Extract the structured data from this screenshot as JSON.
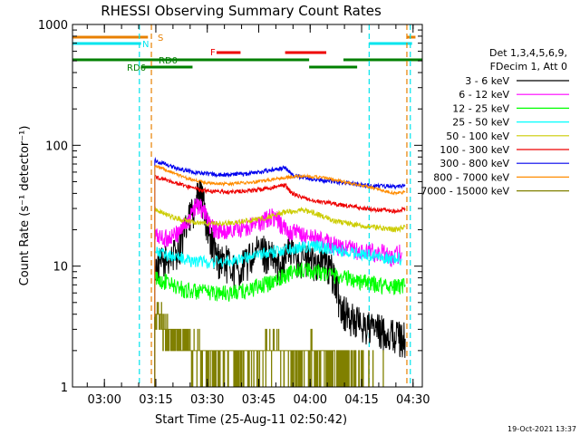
{
  "chart_data": {
    "type": "line",
    "title": "RHESSI Observing Summary Count Rates",
    "xlabel": "Start Time (25-Aug-11 02:50:42)",
    "ylabel": "Count Rate (s⁻¹ detector⁻¹)",
    "yscale": "log",
    "ylim": [
      1,
      1000
    ],
    "xlim_min": [
      0,
      102
    ],
    "x_ticks": [
      {
        "min": 9.3,
        "label": "03:00"
      },
      {
        "min": 24.3,
        "label": "03:15"
      },
      {
        "min": 39.3,
        "label": "03:30"
      },
      {
        "min": 54.3,
        "label": "03:45"
      },
      {
        "min": 69.3,
        "label": "04:00"
      },
      {
        "min": 84.3,
        "label": "04:15"
      },
      {
        "min": 99.3,
        "label": "04:30"
      }
    ],
    "y_ticks": [
      {
        "value": 1,
        "label": "1"
      },
      {
        "value": 10,
        "label": "10"
      },
      {
        "value": 100,
        "label": "100"
      },
      {
        "value": 1000,
        "label": "1000"
      }
    ],
    "legend_header": [
      "Det 1,3,4,5,6,9,",
      "FDecim 1, Att 0"
    ],
    "footer_date": "19-Oct-2021 13:37",
    "flag_labels": {
      "s": "S",
      "n": "N",
      "f": "F",
      "rd0": "RD0",
      "rd6": "RD6"
    },
    "flags": {
      "saa": [
        [
          0,
          22
        ],
        [
          97.5,
          100
        ]
      ],
      "night": [
        [
          0,
          20
        ],
        [
          86.5,
          99
        ]
      ],
      "flare": [
        [
          42,
          49
        ],
        [
          62,
          74
        ]
      ],
      "rd0": [
        [
          0,
          69
        ],
        [
          79,
          102
        ]
      ],
      "rd6": [
        [
          20,
          35
        ],
        [
          69,
          83
        ]
      ]
    },
    "vlines": [
      {
        "min": 19.5,
        "color": "#00e5ee"
      },
      {
        "min": 23.0,
        "color": "#e88000"
      },
      {
        "min": 86.5,
        "color": "#00e5ee"
      },
      {
        "min": 97.5,
        "color": "#e88000"
      },
      {
        "min": 98.5,
        "color": "#00e5ee"
      }
    ],
    "series": [
      {
        "name": "3 - 6 keV",
        "color": "#000000",
        "noise": 0.35,
        "points": [
          [
            24,
            10
          ],
          [
            27,
            11
          ],
          [
            30,
            13
          ],
          [
            33,
            20
          ],
          [
            35,
            30
          ],
          [
            37,
            40
          ],
          [
            38,
            35
          ],
          [
            40,
            18
          ],
          [
            42,
            12
          ],
          [
            45,
            11
          ],
          [
            48,
            9
          ],
          [
            52,
            12
          ],
          [
            55,
            14
          ],
          [
            58,
            12
          ],
          [
            60,
            10
          ],
          [
            63,
            14
          ],
          [
            66,
            12
          ],
          [
            70,
            11
          ],
          [
            73,
            11
          ],
          [
            76,
            9
          ],
          [
            78,
            5
          ],
          [
            80,
            4
          ],
          [
            83,
            3.5
          ],
          [
            86,
            3.2
          ],
          [
            89,
            3
          ],
          [
            92,
            2.8
          ],
          [
            95,
            2.7
          ],
          [
            97,
            2.5
          ]
        ]
      },
      {
        "name": "6 - 12 keV",
        "color": "#ff00ff",
        "noise": 0.18,
        "points": [
          [
            24,
            18
          ],
          [
            27,
            17
          ],
          [
            30,
            18
          ],
          [
            32,
            21
          ],
          [
            34,
            25
          ],
          [
            36,
            32
          ],
          [
            38,
            30
          ],
          [
            40,
            22
          ],
          [
            42,
            20
          ],
          [
            44,
            19
          ],
          [
            46,
            20
          ],
          [
            50,
            21
          ],
          [
            53,
            22
          ],
          [
            56,
            24
          ],
          [
            58,
            26
          ],
          [
            60,
            24
          ],
          [
            62,
            20
          ],
          [
            65,
            19
          ],
          [
            68,
            18
          ],
          [
            71,
            17
          ],
          [
            74,
            16
          ],
          [
            76,
            15
          ],
          [
            78,
            14
          ],
          [
            81,
            14
          ],
          [
            84,
            13
          ],
          [
            87,
            13
          ],
          [
            90,
            13
          ],
          [
            93,
            12
          ],
          [
            96,
            13
          ]
        ]
      },
      {
        "name": "12 - 25 keV",
        "color": "#00ff00",
        "noise": 0.16,
        "points": [
          [
            24,
            8
          ],
          [
            27,
            7.5
          ],
          [
            30,
            6.8
          ],
          [
            33,
            6.4
          ],
          [
            36,
            6.2
          ],
          [
            39,
            6.1
          ],
          [
            42,
            6.1
          ],
          [
            45,
            6.0
          ],
          [
            48,
            6.1
          ],
          [
            51,
            6.3
          ],
          [
            54,
            6.8
          ],
          [
            57,
            7.2
          ],
          [
            60,
            8.0
          ],
          [
            62,
            8.5
          ],
          [
            64,
            9
          ],
          [
            67,
            9.3
          ],
          [
            70,
            9.2
          ],
          [
            73,
            8.9
          ],
          [
            76,
            8.5
          ],
          [
            79,
            8.2
          ],
          [
            82,
            7.8
          ],
          [
            85,
            7.4
          ],
          [
            88,
            7.1
          ],
          [
            91,
            7
          ],
          [
            94,
            6.8
          ],
          [
            97,
            7
          ]
        ]
      },
      {
        "name": "25 - 50 keV",
        "color": "#00ffff",
        "noise": 0.12,
        "points": [
          [
            24,
            13
          ],
          [
            27,
            12.5
          ],
          [
            30,
            12
          ],
          [
            33,
            11.5
          ],
          [
            36,
            11
          ],
          [
            40,
            10.8
          ],
          [
            44,
            11
          ],
          [
            48,
            11.5
          ],
          [
            52,
            12
          ],
          [
            56,
            12.7
          ],
          [
            60,
            13.5
          ],
          [
            63,
            14
          ],
          [
            66,
            14.4
          ],
          [
            69,
            14.6
          ],
          [
            72,
            14.5
          ],
          [
            75,
            14
          ],
          [
            78,
            13.5
          ],
          [
            81,
            13
          ],
          [
            84,
            12.6
          ],
          [
            87,
            12.3
          ],
          [
            90,
            12
          ],
          [
            93,
            11.6
          ],
          [
            96,
            11.5
          ]
        ]
      },
      {
        "name": "50 - 100 keV",
        "color": "#cccc00",
        "noise": 0.05,
        "points": [
          [
            24,
            30
          ],
          [
            27,
            27
          ],
          [
            30,
            25
          ],
          [
            33,
            24
          ],
          [
            36,
            23
          ],
          [
            40,
            22.5
          ],
          [
            44,
            22.5
          ],
          [
            48,
            23
          ],
          [
            52,
            24
          ],
          [
            56,
            25
          ],
          [
            60,
            27
          ],
          [
            62,
            28
          ],
          [
            64,
            28.5
          ],
          [
            67,
            29
          ],
          [
            70,
            28
          ],
          [
            73,
            26
          ],
          [
            76,
            24
          ],
          [
            79,
            23
          ],
          [
            82,
            22
          ],
          [
            85,
            21.5
          ],
          [
            88,
            21
          ],
          [
            91,
            20.5
          ],
          [
            94,
            20
          ],
          [
            97,
            21
          ]
        ]
      },
      {
        "name": "100 - 300 keV",
        "color": "#ee0000",
        "noise": 0.04,
        "points": [
          [
            24,
            55
          ],
          [
            27,
            52
          ],
          [
            30,
            49
          ],
          [
            33,
            46
          ],
          [
            36,
            44
          ],
          [
            39,
            42
          ],
          [
            42,
            41.5
          ],
          [
            45,
            41
          ],
          [
            48,
            41.5
          ],
          [
            51,
            42
          ],
          [
            54,
            43
          ],
          [
            57,
            44
          ],
          [
            60,
            46
          ],
          [
            62,
            47
          ],
          [
            64,
            40
          ],
          [
            67,
            37
          ],
          [
            70,
            35
          ],
          [
            73,
            34
          ],
          [
            76,
            33
          ],
          [
            79,
            32
          ],
          [
            82,
            31
          ],
          [
            85,
            30
          ],
          [
            88,
            29.5
          ],
          [
            91,
            29
          ],
          [
            94,
            28.5
          ],
          [
            97,
            30
          ]
        ]
      },
      {
        "name": "300 - 800 keV",
        "color": "#0000ee",
        "noise": 0.04,
        "points": [
          [
            24,
            75
          ],
          [
            27,
            70
          ],
          [
            30,
            65
          ],
          [
            33,
            62
          ],
          [
            36,
            59
          ],
          [
            39,
            58
          ],
          [
            42,
            57.5
          ],
          [
            45,
            57
          ],
          [
            48,
            57.5
          ],
          [
            51,
            58
          ],
          [
            54,
            60
          ],
          [
            57,
            62
          ],
          [
            60,
            64
          ],
          [
            62,
            65
          ],
          [
            64,
            57
          ],
          [
            67,
            54
          ],
          [
            70,
            52
          ],
          [
            73,
            51
          ],
          [
            76,
            50
          ],
          [
            79,
            49
          ],
          [
            82,
            48
          ],
          [
            85,
            47
          ],
          [
            88,
            46
          ],
          [
            91,
            46
          ],
          [
            94,
            45
          ],
          [
            97,
            47
          ]
        ]
      },
      {
        "name": "800 - 7000 keV",
        "color": "#ff8c00",
        "noise": 0.03,
        "points": [
          [
            24,
            68
          ],
          [
            27,
            63
          ],
          [
            30,
            58
          ],
          [
            33,
            54
          ],
          [
            36,
            51
          ],
          [
            39,
            49
          ],
          [
            42,
            48
          ],
          [
            45,
            48
          ],
          [
            48,
            48.5
          ],
          [
            51,
            49
          ],
          [
            54,
            50
          ],
          [
            57,
            51.5
          ],
          [
            60,
            53
          ],
          [
            62,
            54
          ],
          [
            64,
            55
          ],
          [
            67,
            55.5
          ],
          [
            70,
            55
          ],
          [
            73,
            54
          ],
          [
            76,
            52
          ],
          [
            79,
            50
          ],
          [
            82,
            48
          ],
          [
            85,
            46
          ],
          [
            88,
            44
          ],
          [
            91,
            42
          ],
          [
            94,
            40
          ],
          [
            97,
            41
          ]
        ]
      },
      {
        "name": "7000 - 15000 keV",
        "color": "#808000",
        "noise": 0.0,
        "points": [
          [
            24,
            3.8
          ],
          [
            26,
            3.6
          ],
          [
            28,
            2.6
          ],
          [
            30,
            2.4
          ],
          [
            32,
            2.2
          ],
          [
            34,
            2.1
          ],
          [
            36,
            2.0
          ],
          [
            38,
            1.9
          ],
          [
            40,
            1.8
          ],
          [
            42,
            1.7
          ],
          [
            44,
            1.8
          ],
          [
            46,
            1.7
          ],
          [
            48,
            1.6
          ],
          [
            50,
            1.7
          ],
          [
            52,
            1.8
          ],
          [
            54,
            1.9
          ],
          [
            56,
            2.0
          ],
          [
            58,
            2.1
          ],
          [
            60,
            2.0
          ],
          [
            62,
            1.9
          ],
          [
            64,
            1.8
          ],
          [
            66,
            1.8
          ],
          [
            68,
            1.9
          ],
          [
            70,
            2.0
          ],
          [
            72,
            1.9
          ],
          [
            74,
            1.8
          ],
          [
            76,
            1.7
          ],
          [
            78,
            1.6
          ],
          [
            80,
            1.5
          ],
          [
            82,
            1.4
          ],
          [
            84,
            1.3
          ],
          [
            86,
            1.2
          ],
          [
            88,
            1.2
          ],
          [
            90,
            1.2
          ],
          [
            92,
            1.1
          ],
          [
            94,
            1.1
          ],
          [
            96,
            1.1
          ]
        ]
      }
    ]
  }
}
